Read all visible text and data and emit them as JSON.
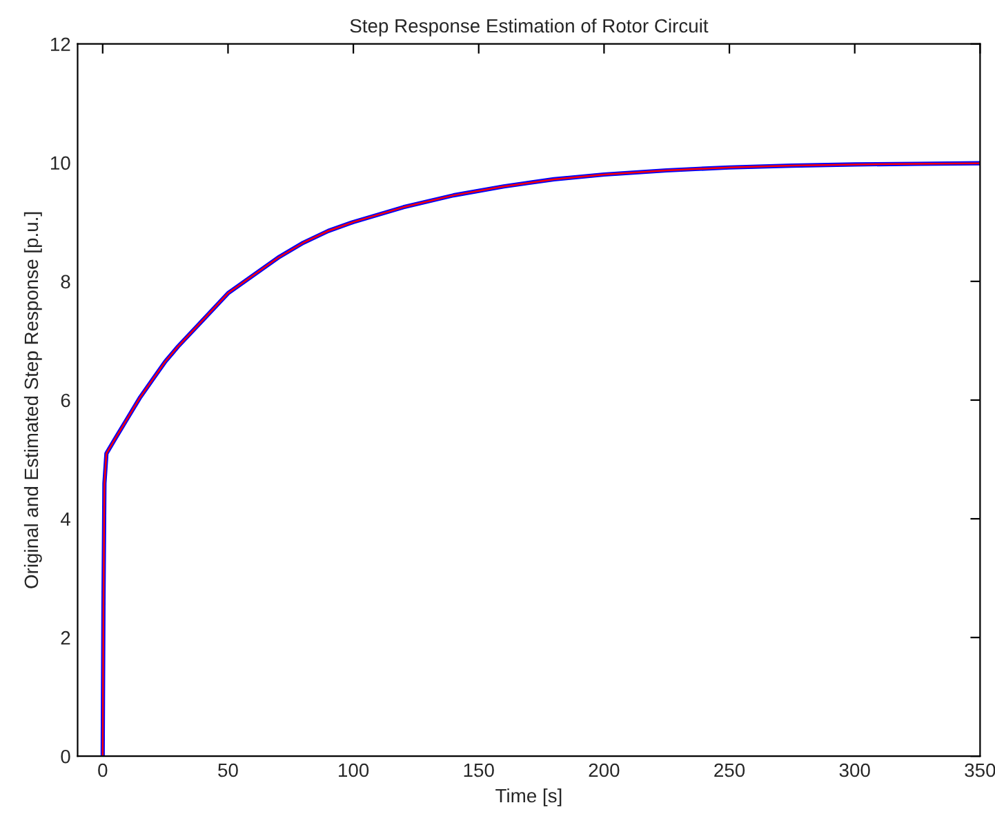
{
  "chart_data": {
    "type": "line",
    "title": "Step Response Estimation of Rotor Circuit",
    "xlabel": "Time [s]",
    "ylabel": "Original and Estimated Step Response [p.u.]",
    "x": [
      0,
      0.3,
      0.7,
      1.5,
      5,
      10,
      15,
      20,
      25,
      30,
      40,
      50,
      60,
      70,
      80,
      90,
      100,
      120,
      140,
      160,
      180,
      200,
      225,
      250,
      275,
      300,
      325,
      350
    ],
    "series": [
      {
        "color": "#0000ff",
        "values": [
          0,
          2.5,
          4.6,
          5.1,
          5.35,
          5.7,
          6.05,
          6.35,
          6.65,
          6.9,
          7.35,
          7.8,
          8.1,
          8.4,
          8.65,
          8.85,
          9.0,
          9.25,
          9.45,
          9.6,
          9.72,
          9.8,
          9.87,
          9.92,
          9.95,
          9.97,
          9.98,
          9.99
        ]
      },
      {
        "color": "#ff0000",
        "values": [
          0,
          2.5,
          4.6,
          5.1,
          5.35,
          5.7,
          6.05,
          6.35,
          6.65,
          6.9,
          7.35,
          7.8,
          8.1,
          8.4,
          8.65,
          8.85,
          9.0,
          9.25,
          9.45,
          9.6,
          9.72,
          9.8,
          9.87,
          9.92,
          9.95,
          9.97,
          9.98,
          9.99
        ]
      }
    ],
    "xlim": [
      -10,
      350
    ],
    "ylim": [
      0,
      12
    ],
    "xticks": [
      0,
      50,
      100,
      150,
      200,
      250,
      300,
      350
    ],
    "yticks": [
      0,
      2,
      4,
      6,
      8,
      10,
      12
    ],
    "grid": false,
    "legend": false
  }
}
